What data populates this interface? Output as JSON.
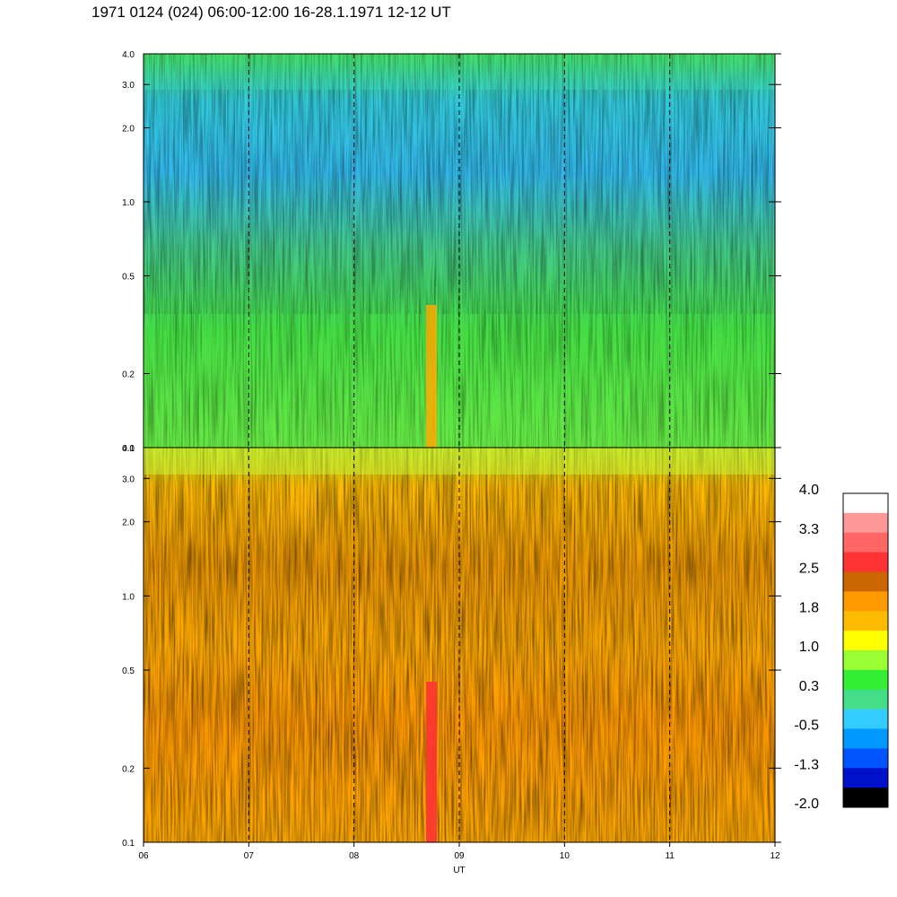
{
  "title": "1971 0124 (024) 06:00-12:00 16-28.1.1971  12-12 UT",
  "chart_data": {
    "type": "heatmap",
    "title": "1971 0124 (024) 06:00-12:00 16-28.1.1971  12-12 UT",
    "xlabel": "UT",
    "x_ticks": [
      "06",
      "07",
      "08",
      "09",
      "10",
      "11",
      "12"
    ],
    "x_range": [
      6,
      12
    ],
    "y_scale": "log",
    "y_range": [
      0.1,
      4.0
    ],
    "y_ticks": [
      {
        "value": 0.1,
        "label": "0.1"
      },
      {
        "value": 0.2,
        "label": "0.2"
      },
      {
        "value": 0.5,
        "label": "0.5"
      },
      {
        "value": 1.0,
        "label": "1.0"
      },
      {
        "value": 2.0,
        "label": "2.0"
      },
      {
        "value": 3.0,
        "label": "3.0"
      },
      {
        "value": 4.0,
        "label": "4.0"
      }
    ],
    "panels": [
      {
        "name": "upper",
        "dominant_levels": [
          "-0.5",
          "0.3",
          "1.0"
        ],
        "dashed_hour_lines": [
          7,
          8,
          9,
          10,
          11
        ]
      },
      {
        "name": "lower",
        "dominant_levels": [
          "1.0",
          "1.8",
          "2.5"
        ],
        "dashed_hour_lines": [
          7,
          8,
          9,
          10,
          11
        ]
      }
    ],
    "colorbar": {
      "labels": [
        "4.0",
        "3.3",
        "2.5",
        "1.8",
        "1.0",
        "0.3",
        "-0.5",
        "-1.3",
        "-2.0"
      ],
      "colors": [
        "#ffffff",
        "#ff9999",
        "#ff6666",
        "#ff3333",
        "#cc6600",
        "#ff9900",
        "#ffbb00",
        "#ffff00",
        "#99ff33",
        "#33ee33",
        "#44dd88",
        "#33ccff",
        "#0099ff",
        "#0055ff",
        "#0011cc",
        "#000000"
      ]
    }
  }
}
